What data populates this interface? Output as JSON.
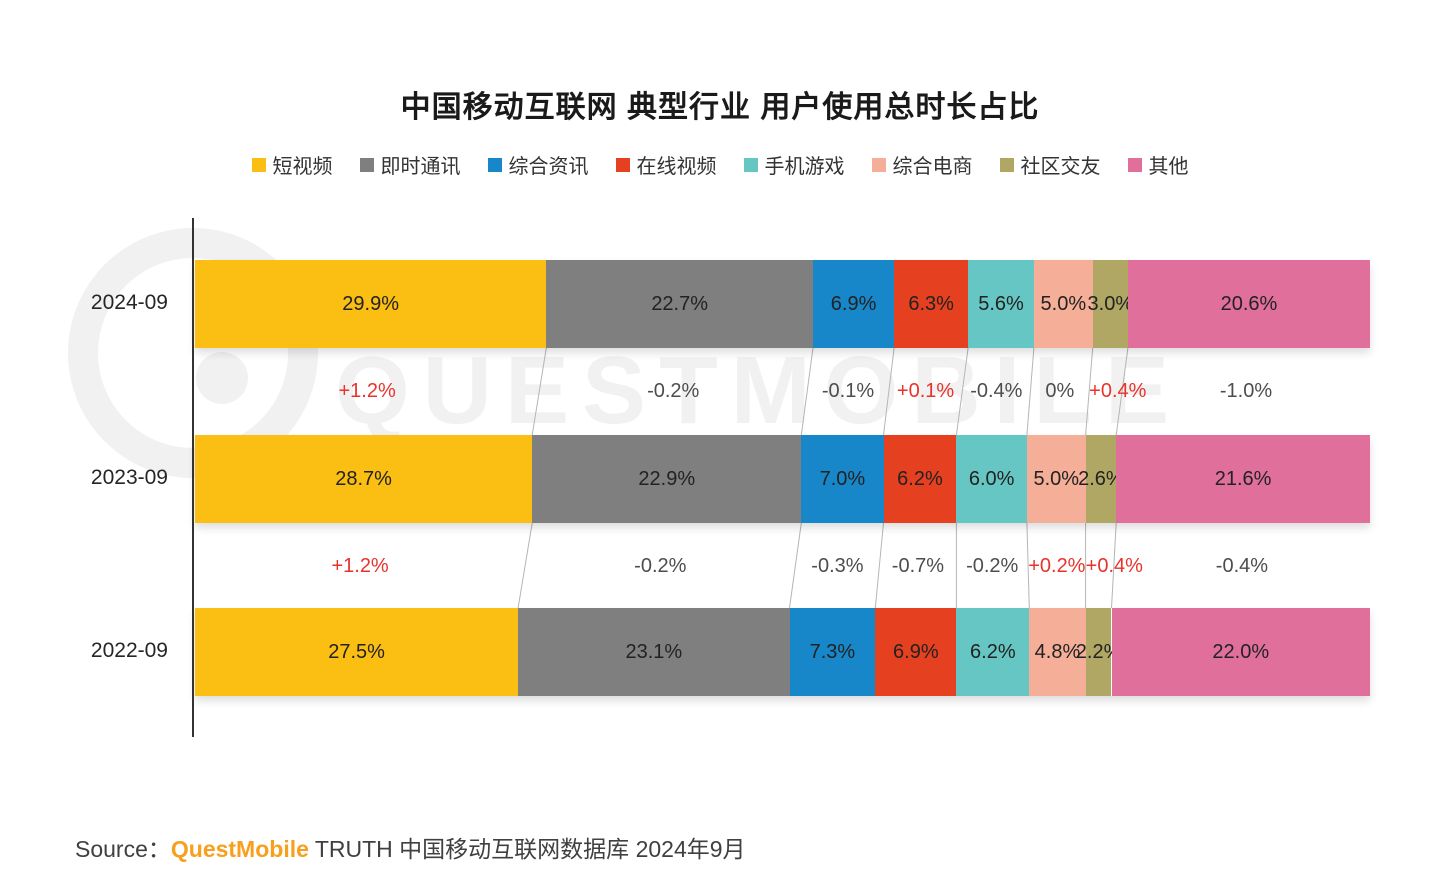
{
  "title": "中国移动互联网 典型行业 用户使用总时长占比",
  "watermark": "QUESTMOBILE",
  "legend": [
    {
      "label": "短视频",
      "color": "#FBBE12"
    },
    {
      "label": "即时通讯",
      "color": "#7F7F7F"
    },
    {
      "label": "综合资讯",
      "color": "#1787C9"
    },
    {
      "label": "在线视频",
      "color": "#E5401F"
    },
    {
      "label": "手机游戏",
      "color": "#65C6C3"
    },
    {
      "label": "综合电商",
      "color": "#F5AF98"
    },
    {
      "label": "社区交友",
      "color": "#AFA763"
    },
    {
      "label": "其他",
      "color": "#E0709B"
    }
  ],
  "chart_data": {
    "type": "bar",
    "orientation": "horizontal-stacked",
    "unit": "%",
    "xlim": [
      0,
      100
    ],
    "categories": [
      "2024-09",
      "2023-09",
      "2022-09"
    ],
    "series_labels": [
      "短视频",
      "即时通讯",
      "综合资讯",
      "在线视频",
      "手机游戏",
      "综合电商",
      "社区交友",
      "其他"
    ],
    "rows": [
      {
        "category": "2024-09",
        "values": [
          29.9,
          22.7,
          6.9,
          6.3,
          5.6,
          5.0,
          3.0,
          20.6
        ]
      },
      {
        "category": "2023-09",
        "values": [
          28.7,
          22.9,
          7.0,
          6.2,
          6.0,
          5.0,
          2.6,
          21.6
        ]
      },
      {
        "category": "2022-09",
        "values": [
          27.5,
          23.1,
          7.3,
          6.9,
          6.2,
          4.8,
          2.2,
          22.0
        ]
      }
    ],
    "changes": [
      {
        "between": [
          "2024-09",
          "2023-09"
        ],
        "values": [
          "+1.2%",
          "-0.2%",
          "-0.1%",
          "+0.1%",
          "-0.4%",
          "0%",
          "+0.4%",
          "-1.0%"
        ]
      },
      {
        "between": [
          "2023-09",
          "2022-09"
        ],
        "values": [
          "+1.2%",
          "-0.2%",
          "-0.3%",
          "-0.7%",
          "-0.2%",
          "+0.2%",
          "+0.4%",
          "-0.4%"
        ]
      }
    ],
    "legend_position": "top",
    "grid": false
  },
  "colors": {
    "positive_change": "#E8332C",
    "negative_change": "#4D4D4D",
    "axis": "#333333",
    "connector": "#b5b5b5",
    "bar_label": "#222222"
  },
  "source": {
    "prefix": "Source：",
    "brand": "QuestMobile",
    "rest": " TRUTH 中国移动互联网数据库 2024年9月"
  }
}
